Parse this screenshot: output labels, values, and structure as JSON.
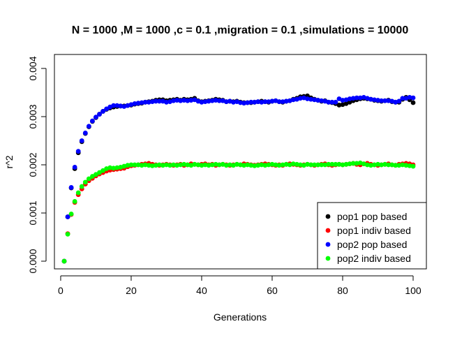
{
  "chart_data": {
    "type": "scatter",
    "title": "N = 1000 ,M = 1000 ,c = 0.1 ,migration = 0.1 ,simulations = 10000",
    "xlabel": "Generations",
    "ylabel": "r^2",
    "xlim": [
      1,
      100
    ],
    "ylim": [
      0.0,
      0.004
    ],
    "x_ticks": [
      0,
      20,
      40,
      60,
      80,
      100
    ],
    "y_ticks": [
      0.0,
      0.001,
      0.002,
      0.003,
      0.004
    ],
    "x_tick_labels": [
      "0",
      "20",
      "40",
      "60",
      "80",
      "100"
    ],
    "y_tick_labels": [
      "0.000",
      "0.001",
      "0.002",
      "0.003",
      "0.004"
    ],
    "legend_position": "bottom-right",
    "grid": false,
    "series": [
      {
        "name": "pop1 pop based",
        "color": "#000000",
        "x": [
          1,
          2,
          3,
          4,
          5,
          6,
          7,
          8,
          9,
          10,
          11,
          12,
          13,
          14,
          15,
          16,
          17,
          18,
          19,
          20,
          21,
          22,
          23,
          24,
          25,
          26,
          27,
          28,
          29,
          30,
          31,
          32,
          33,
          34,
          35,
          36,
          37,
          38,
          39,
          40,
          41,
          42,
          43,
          44,
          45,
          46,
          47,
          48,
          49,
          50,
          51,
          52,
          53,
          54,
          55,
          56,
          57,
          58,
          59,
          60,
          61,
          62,
          63,
          64,
          65,
          66,
          67,
          68,
          69,
          70,
          71,
          72,
          73,
          74,
          75,
          76,
          77,
          78,
          79,
          80,
          81,
          82,
          83,
          84,
          85,
          86,
          87,
          88,
          89,
          90,
          91,
          92,
          93,
          94,
          95,
          96,
          97,
          98,
          99,
          100
        ],
        "values": [
          0.0,
          0.00092,
          0.00152,
          0.00192,
          0.00225,
          0.00248,
          0.00265,
          0.00279,
          0.0029,
          0.00298,
          0.00305,
          0.00311,
          0.00315,
          0.00318,
          0.0032,
          0.00321,
          0.00322,
          0.00322,
          0.00323,
          0.00324,
          0.00326,
          0.00327,
          0.00328,
          0.0033,
          0.00331,
          0.00332,
          0.00334,
          0.00335,
          0.00335,
          0.00333,
          0.00334,
          0.00335,
          0.00336,
          0.00334,
          0.00336,
          0.00335,
          0.00336,
          0.00338,
          0.00333,
          0.00331,
          0.00332,
          0.00333,
          0.00334,
          0.00336,
          0.00335,
          0.00334,
          0.00331,
          0.00332,
          0.00331,
          0.00332,
          0.0033,
          0.00329,
          0.00329,
          0.00329,
          0.0033,
          0.00331,
          0.00332,
          0.00331,
          0.0033,
          0.00332,
          0.00333,
          0.00331,
          0.0033,
          0.00332,
          0.00333,
          0.00336,
          0.00338,
          0.00341,
          0.00342,
          0.00343,
          0.00339,
          0.00336,
          0.00334,
          0.00332,
          0.00333,
          0.0033,
          0.00329,
          0.00327,
          0.00324,
          0.00325,
          0.00327,
          0.0033,
          0.00333,
          0.00335,
          0.00337,
          0.00338,
          0.00337,
          0.00336,
          0.00334,
          0.00333,
          0.00332,
          0.00333,
          0.00334,
          0.00331,
          0.0033,
          0.0033,
          0.00336,
          0.0034,
          0.00335,
          0.00329
        ]
      },
      {
        "name": "pop1 indiv based",
        "color": "#ff0000",
        "x": [
          1,
          2,
          3,
          4,
          5,
          6,
          7,
          8,
          9,
          10,
          11,
          12,
          13,
          14,
          15,
          16,
          17,
          18,
          19,
          20,
          21,
          22,
          23,
          24,
          25,
          26,
          27,
          28,
          29,
          30,
          31,
          32,
          33,
          34,
          35,
          36,
          37,
          38,
          39,
          40,
          41,
          42,
          43,
          44,
          45,
          46,
          47,
          48,
          49,
          50,
          51,
          52,
          53,
          54,
          55,
          56,
          57,
          58,
          59,
          60,
          61,
          62,
          63,
          64,
          65,
          66,
          67,
          68,
          69,
          70,
          71,
          72,
          73,
          74,
          75,
          76,
          77,
          78,
          79,
          80,
          81,
          82,
          83,
          84,
          85,
          86,
          87,
          88,
          89,
          90,
          91,
          92,
          93,
          94,
          95,
          96,
          97,
          98,
          99,
          100
        ],
        "values": [
          0.0,
          0.00057,
          0.00097,
          0.00122,
          0.00138,
          0.0015,
          0.0016,
          0.00167,
          0.00172,
          0.00177,
          0.00181,
          0.00184,
          0.00187,
          0.00189,
          0.0019,
          0.00191,
          0.00192,
          0.00193,
          0.00196,
          0.00198,
          0.00199,
          0.002,
          0.00201,
          0.00202,
          0.00203,
          0.00201,
          0.002,
          0.00199,
          0.002,
          0.00201,
          0.002,
          0.00199,
          0.002,
          0.00201,
          0.00199,
          0.002,
          0.00202,
          0.00201,
          0.002,
          0.00201,
          0.00202,
          0.002,
          0.00201,
          0.00199,
          0.002,
          0.00201,
          0.002,
          0.00199,
          0.002,
          0.00201,
          0.002,
          0.00202,
          0.00201,
          0.002,
          0.00199,
          0.002,
          0.00201,
          0.00202,
          0.00201,
          0.002,
          0.00199,
          0.002,
          0.00199,
          0.00201,
          0.00202,
          0.00201,
          0.002,
          0.00199,
          0.002,
          0.00201,
          0.002,
          0.00199,
          0.002,
          0.00201,
          0.00202,
          0.002,
          0.00199,
          0.002,
          0.00201,
          0.002,
          0.00201,
          0.00202,
          0.00203,
          0.00201,
          0.002,
          0.00202,
          0.00203,
          0.00201,
          0.002,
          0.00199,
          0.002,
          0.00201,
          0.00202,
          0.002,
          0.00199,
          0.00201,
          0.00202,
          0.00203,
          0.00202,
          0.002
        ]
      },
      {
        "name": "pop2 pop based",
        "color": "#0000ff",
        "x": [
          1,
          2,
          3,
          4,
          5,
          6,
          7,
          8,
          9,
          10,
          11,
          12,
          13,
          14,
          15,
          16,
          17,
          18,
          19,
          20,
          21,
          22,
          23,
          24,
          25,
          26,
          27,
          28,
          29,
          30,
          31,
          32,
          33,
          34,
          35,
          36,
          37,
          38,
          39,
          40,
          41,
          42,
          43,
          44,
          45,
          46,
          47,
          48,
          49,
          50,
          51,
          52,
          53,
          54,
          55,
          56,
          57,
          58,
          59,
          60,
          61,
          62,
          63,
          64,
          65,
          66,
          67,
          68,
          69,
          70,
          71,
          72,
          73,
          74,
          75,
          76,
          77,
          78,
          79,
          80,
          81,
          82,
          83,
          84,
          85,
          86,
          87,
          88,
          89,
          90,
          91,
          92,
          93,
          94,
          95,
          96,
          97,
          98,
          99,
          100
        ],
        "values": [
          0.0,
          0.00092,
          0.00153,
          0.00195,
          0.00228,
          0.0025,
          0.00266,
          0.0028,
          0.00291,
          0.00299,
          0.00305,
          0.00311,
          0.00316,
          0.0032,
          0.00323,
          0.00323,
          0.00322,
          0.00321,
          0.00323,
          0.00325,
          0.00327,
          0.00328,
          0.00329,
          0.0033,
          0.0033,
          0.00331,
          0.00332,
          0.00332,
          0.00332,
          0.0033,
          0.00331,
          0.00333,
          0.00334,
          0.00333,
          0.00334,
          0.00333,
          0.00334,
          0.00335,
          0.00332,
          0.0033,
          0.00331,
          0.00332,
          0.00333,
          0.00334,
          0.00333,
          0.00333,
          0.00331,
          0.00332,
          0.0033,
          0.00331,
          0.00329,
          0.00328,
          0.00329,
          0.0033,
          0.0033,
          0.00331,
          0.0033,
          0.00331,
          0.00331,
          0.00332,
          0.00333,
          0.00331,
          0.00331,
          0.00332,
          0.00333,
          0.00335,
          0.00336,
          0.00338,
          0.00339,
          0.00337,
          0.00336,
          0.00335,
          0.00334,
          0.00333,
          0.00332,
          0.0033,
          0.0033,
          0.0033,
          0.00337,
          0.00334,
          0.00335,
          0.00337,
          0.00338,
          0.00339,
          0.00339,
          0.0034,
          0.00338,
          0.00336,
          0.00335,
          0.00334,
          0.00333,
          0.00333,
          0.00333,
          0.00332,
          0.0033,
          0.00332,
          0.00338,
          0.00338,
          0.0034,
          0.00339
        ]
      },
      {
        "name": "pop2 indiv based",
        "color": "#00ff00",
        "x": [
          1,
          2,
          3,
          4,
          5,
          6,
          7,
          8,
          9,
          10,
          11,
          12,
          13,
          14,
          15,
          16,
          17,
          18,
          19,
          20,
          21,
          22,
          23,
          24,
          25,
          26,
          27,
          28,
          29,
          30,
          31,
          32,
          33,
          34,
          35,
          36,
          37,
          38,
          39,
          40,
          41,
          42,
          43,
          44,
          45,
          46,
          47,
          48,
          49,
          50,
          51,
          52,
          53,
          54,
          55,
          56,
          57,
          58,
          59,
          60,
          61,
          62,
          63,
          64,
          65,
          66,
          67,
          68,
          69,
          70,
          71,
          72,
          73,
          74,
          75,
          76,
          77,
          78,
          79,
          80,
          81,
          82,
          83,
          84,
          85,
          86,
          87,
          88,
          89,
          90,
          91,
          92,
          93,
          94,
          95,
          96,
          97,
          98,
          99,
          100
        ],
        "values": [
          0.0,
          0.00056,
          0.00098,
          0.00124,
          0.00142,
          0.00155,
          0.00164,
          0.00171,
          0.00176,
          0.0018,
          0.00184,
          0.00188,
          0.00192,
          0.00194,
          0.00193,
          0.00194,
          0.00195,
          0.00197,
          0.00199,
          0.002,
          0.002,
          0.002,
          0.00199,
          0.002,
          0.00199,
          0.00198,
          0.00199,
          0.002,
          0.00199,
          0.002,
          0.00199,
          0.002,
          0.00199,
          0.002,
          0.00201,
          0.002,
          0.00199,
          0.00201,
          0.002,
          0.00199,
          0.002,
          0.00199,
          0.002,
          0.00201,
          0.002,
          0.00201,
          0.00199,
          0.002,
          0.00199,
          0.00201,
          0.002,
          0.00199,
          0.002,
          0.00199,
          0.00198,
          0.00199,
          0.002,
          0.00199,
          0.002,
          0.00201,
          0.002,
          0.00199,
          0.002,
          0.00201,
          0.002,
          0.00202,
          0.00201,
          0.002,
          0.00199,
          0.00201,
          0.002,
          0.002,
          0.002,
          0.002,
          0.002,
          0.00201,
          0.00201,
          0.00201,
          0.00201,
          0.002,
          0.00201,
          0.00202,
          0.00203,
          0.00203,
          0.00204,
          0.00202,
          0.002,
          0.00199,
          0.002,
          0.00201,
          0.002,
          0.00201,
          0.002,
          0.002,
          0.00199,
          0.00199,
          0.002,
          0.00199,
          0.00198,
          0.00197
        ]
      }
    ]
  }
}
